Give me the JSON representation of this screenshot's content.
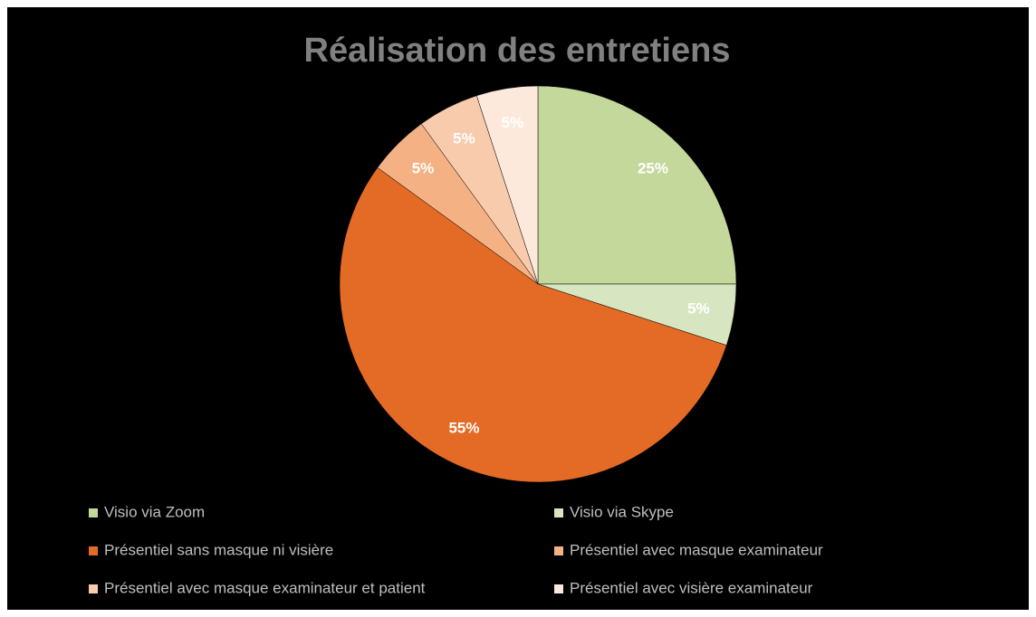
{
  "chart_data": {
    "type": "pie",
    "title": "Réalisation des entretiens",
    "categories": [
      "Visio via Zoom",
      "Visio via Skype",
      "Présentiel sans masque ni visière",
      "Présentiel avec masque examinateur",
      "Présentiel avec masque examinateur et patient",
      "Présentiel avec visière examinateur"
    ],
    "values": [
      25,
      5,
      55,
      5,
      5,
      5
    ],
    "value_labels": [
      "25%",
      "5%",
      "55%",
      "5%",
      "5%",
      "5%"
    ],
    "colors": [
      "#c5d89b",
      "#d7e6c0",
      "#e46b25",
      "#f4b183",
      "#f9cbad",
      "#fde9dc"
    ],
    "legend": "bottom"
  }
}
